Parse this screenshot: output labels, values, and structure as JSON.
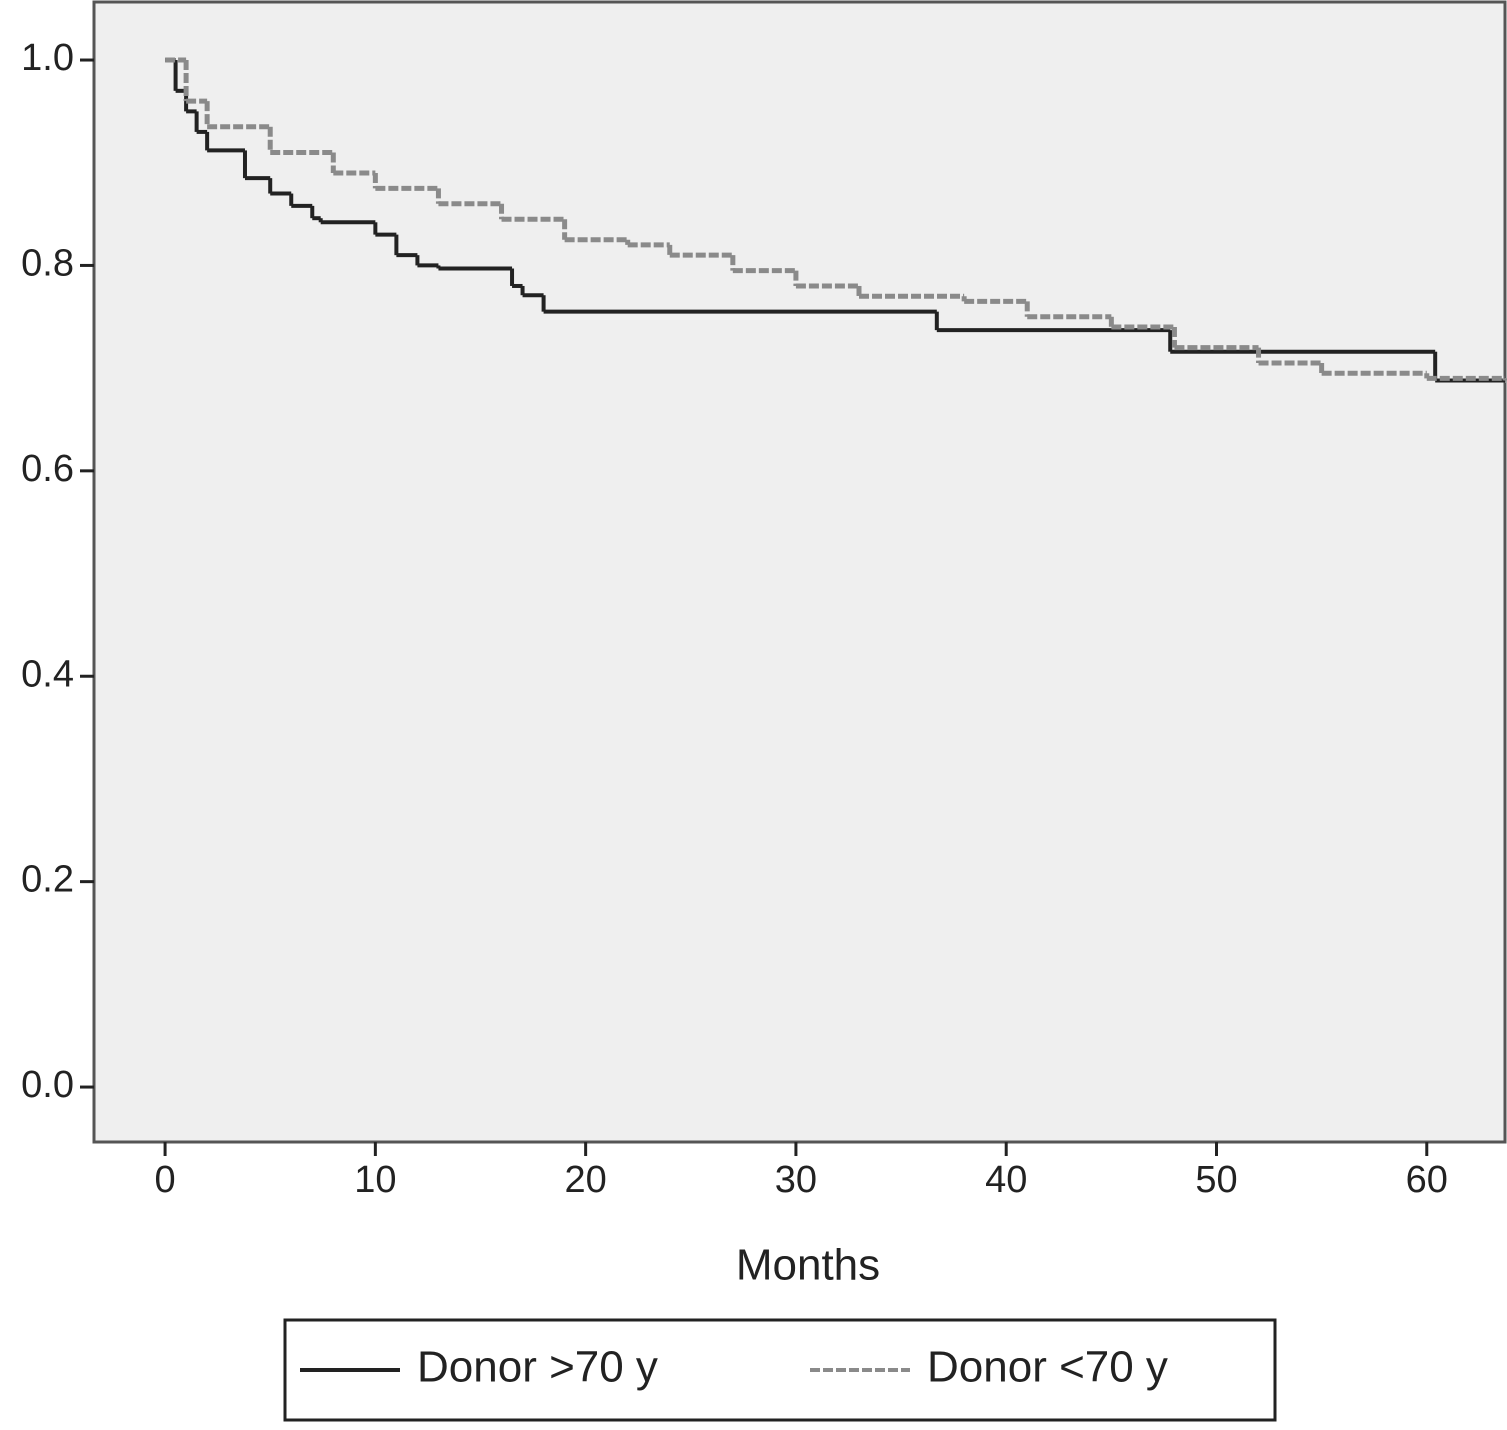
{
  "chart_data": {
    "type": "step",
    "x_label": "Months",
    "xlim": [
      -3.38,
      63.72
    ],
    "ylim": [
      -0.0535,
      1.0565
    ],
    "xticks": [
      0,
      10,
      20,
      30,
      40,
      50,
      60
    ],
    "yticks": [
      {
        "value": 0,
        "label": "0.0"
      },
      0.2,
      0.4,
      0.6,
      0.8,
      {
        "value": 1,
        "label": "1.0"
      }
    ],
    "background": "#efefef",
    "series": [
      {
        "name": "Donor >70 y",
        "color": "#222222",
        "dashed": false,
        "x": [
          0,
          0.5,
          1,
          1.5,
          2,
          3.8,
          5,
          6,
          7,
          7.4,
          10,
          11,
          12,
          13,
          16.5,
          17,
          18,
          36.7,
          47.8,
          60.4,
          63.72
        ],
        "values": [
          1.0,
          0.97,
          0.95,
          0.93,
          0.912,
          0.885,
          0.87,
          0.858,
          0.846,
          0.842,
          0.83,
          0.81,
          0.8,
          0.797,
          0.78,
          0.771,
          0.755,
          0.737,
          0.716,
          0.688,
          0.688
        ]
      },
      {
        "name": "Donor <70 y",
        "color": "#8a8a8a",
        "dashed": true,
        "x": [
          0,
          1,
          2,
          5,
          8,
          10,
          13,
          16,
          19,
          22,
          24,
          27,
          30,
          33,
          38,
          41,
          45,
          48,
          52,
          55,
          60,
          63.72
        ],
        "values": [
          1.0,
          0.96,
          0.935,
          0.91,
          0.89,
          0.875,
          0.86,
          0.845,
          0.825,
          0.82,
          0.81,
          0.795,
          0.78,
          0.77,
          0.765,
          0.75,
          0.74,
          0.72,
          0.705,
          0.695,
          0.69,
          0.688
        ]
      }
    ]
  }
}
